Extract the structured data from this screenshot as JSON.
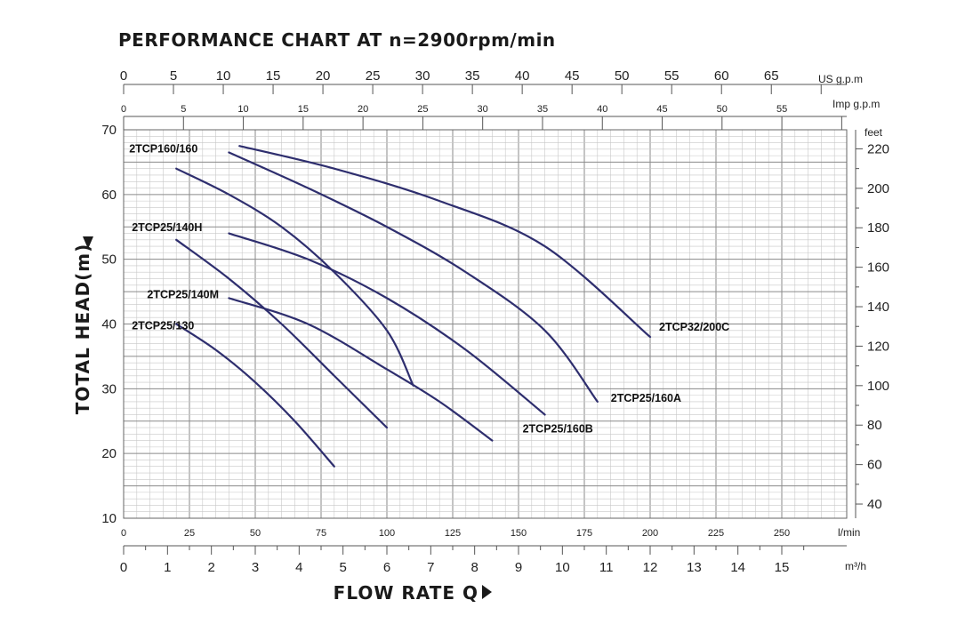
{
  "chart_data": {
    "type": "line",
    "title": "PERFORMANCE CHART AT n=2900rpm/min",
    "xlabel": "FLOW RATE Q",
    "ylabel": "TOTAL HEAD(m)",
    "xlim": [
      0,
      270
    ],
    "ylim": [
      10,
      70
    ],
    "grid": true,
    "x_unit": "l/min",
    "y_unit": "m",
    "x_ticks_lmin": [
      0,
      25,
      50,
      75,
      100,
      125,
      150,
      175,
      200,
      225,
      250
    ],
    "y_ticks_m": [
      10,
      20,
      30,
      40,
      50,
      60,
      70
    ],
    "secondary_axes": {
      "us_gpm": {
        "unit": "US  g.p.m",
        "ticks": [
          0,
          5,
          10,
          15,
          20,
          25,
          30,
          35,
          40,
          45,
          50,
          55,
          60,
          65
        ]
      },
      "imp_gpm": {
        "unit": "Imp  g.p.m",
        "ticks": [
          0,
          5,
          10,
          15,
          20,
          25,
          30,
          35,
          40,
          45,
          50,
          55
        ]
      },
      "m3h": {
        "unit": "m³/h",
        "ticks": [
          0,
          1,
          2,
          3,
          4,
          5,
          6,
          7,
          8,
          9,
          10,
          11,
          12,
          13,
          14,
          15
        ]
      },
      "feet": {
        "unit": "feet",
        "ticks": [
          40,
          60,
          80,
          100,
          120,
          140,
          160,
          180,
          200,
          220
        ]
      }
    },
    "series": [
      {
        "name": "2TCP25/130",
        "x": [
          20,
          35,
          50,
          65,
          80
        ],
        "y": [
          40,
          36,
          31,
          25,
          18
        ]
      },
      {
        "name": "2TCP25/140H",
        "x": [
          20,
          40,
          60,
          80,
          100
        ],
        "y": [
          53,
          47,
          40,
          32,
          24
        ]
      },
      {
        "name": "2TCP25/140M",
        "x": [
          40,
          70,
          100,
          120,
          140
        ],
        "y": [
          44,
          40,
          33,
          28,
          22
        ]
      },
      {
        "name": "2TCP160/160",
        "x": [
          20,
          40,
          60,
          80,
          100,
          110
        ],
        "y": [
          64,
          60,
          55,
          48,
          39,
          30.5
        ]
      },
      {
        "name": "2TCP25/160B",
        "x": [
          40,
          70,
          100,
          130,
          160
        ],
        "y": [
          54,
          50,
          44,
          36,
          26
        ]
      },
      {
        "name": "2TCP25/160A",
        "x": [
          40,
          70,
          100,
          130,
          160,
          180
        ],
        "y": [
          66.5,
          61,
          55,
          48,
          39,
          28
        ]
      },
      {
        "name": "2TCP32/200C",
        "x": [
          44,
          80,
          120,
          160,
          200
        ],
        "y": [
          67.5,
          64,
          59,
          52,
          38
        ]
      }
    ],
    "series_color": "#2e2e6e"
  }
}
